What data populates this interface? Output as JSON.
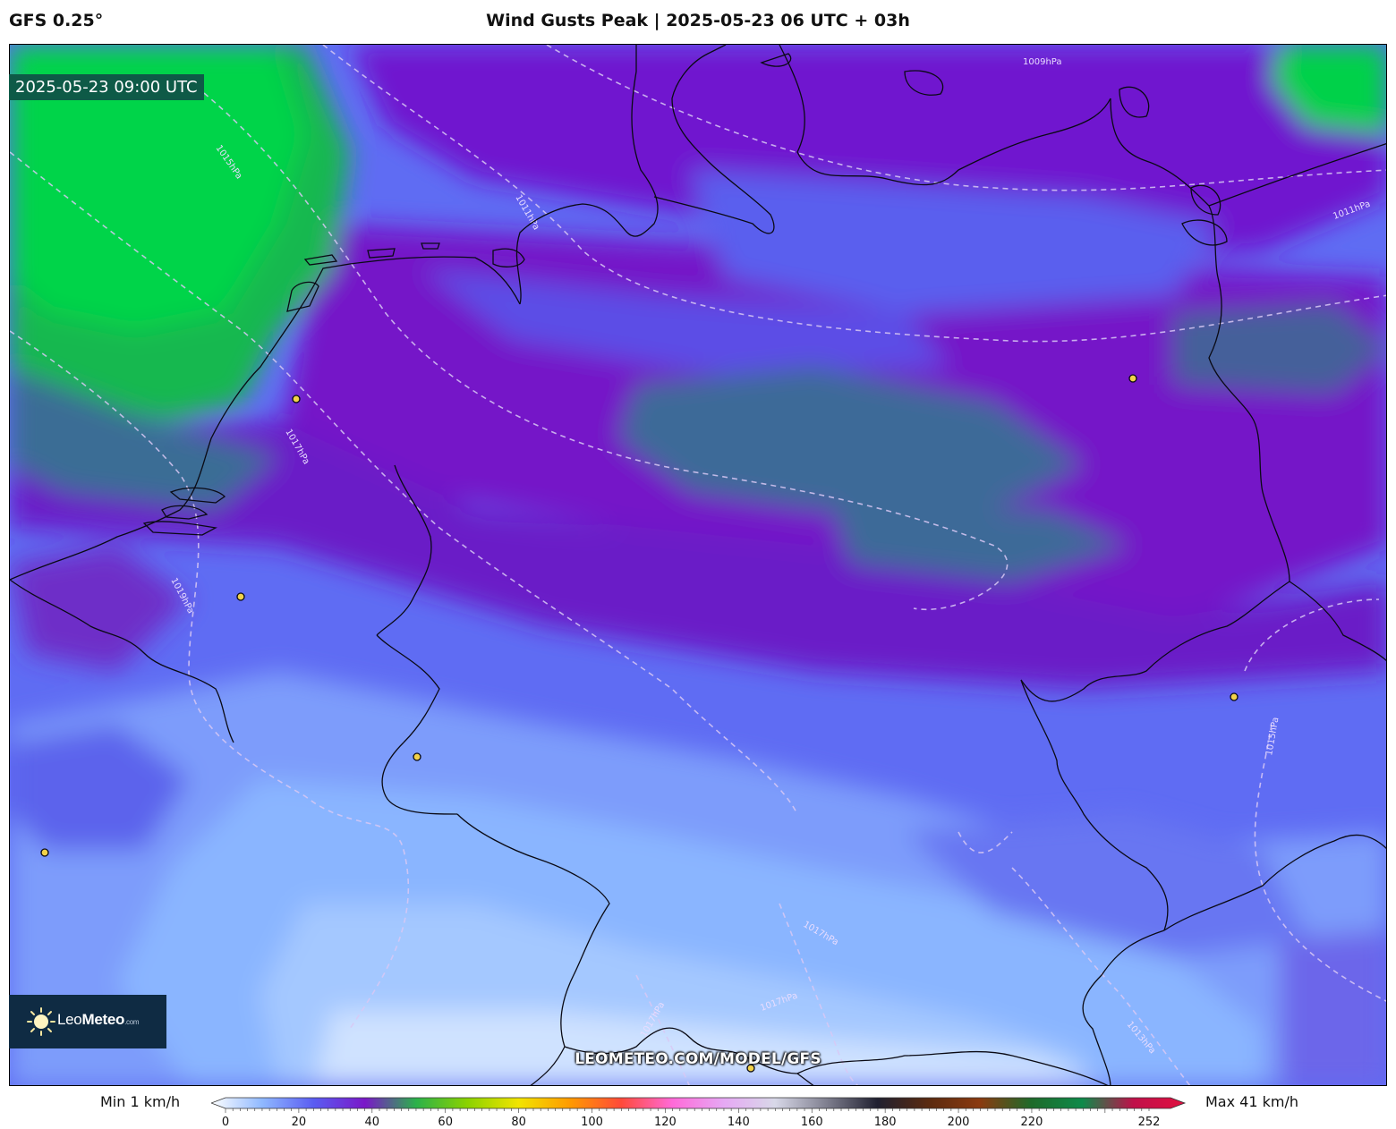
{
  "header": {
    "model": "GFS 0.25°",
    "title": "Wind Gusts Peak | 2025-05-23 06 UTC + 03h"
  },
  "map": {
    "valid_time": "2025-05-23 09:00 UTC",
    "isobar_labels": [
      "1009hPa",
      "1011hPa",
      "1011hPa",
      "1013hPa",
      "1015hPa",
      "1015hPa",
      "1017hPa",
      "1017hPa",
      "1017hPa",
      "1017hPa",
      "1019hPa",
      "1015hPa"
    ],
    "watermark": "LEOMETEO.COM/MODEL/GFS",
    "logo": {
      "name_light": "Leo",
      "name_bold": "Meteo",
      "suffix": ".com",
      "icon": "sun-icon"
    }
  },
  "colorbar": {
    "min_label": "Min 1 km/h",
    "max_label": "Max 41 km/h",
    "ticks": [
      "0",
      "20",
      "40",
      "60",
      "80",
      "100",
      "120",
      "140",
      "160",
      "180",
      "200",
      "220",
      "252"
    ],
    "range": [
      0,
      252
    ],
    "stops": [
      "#ffffff",
      "#8fb8ff",
      "#5a5cf2",
      "#7a18c8",
      "#2bb14a",
      "#8bd200",
      "#f2e400",
      "#ff9a00",
      "#ff4a3a",
      "#ff6ad8",
      "#e6a8f4",
      "#d8d8e8",
      "#808090",
      "#202030",
      "#5a2a10",
      "#8b3a10",
      "#1f6a2a",
      "#0e8a4a",
      "#c0104a",
      "#e01040"
    ]
  },
  "colors": {
    "green": "#03d44a",
    "teal": "#3f6e97",
    "purple": "#6f14cc",
    "violet": "#5a2fe0",
    "blue": "#5f74f5",
    "light_blue": "#85b3ff",
    "pale": "#cfe3ff"
  }
}
